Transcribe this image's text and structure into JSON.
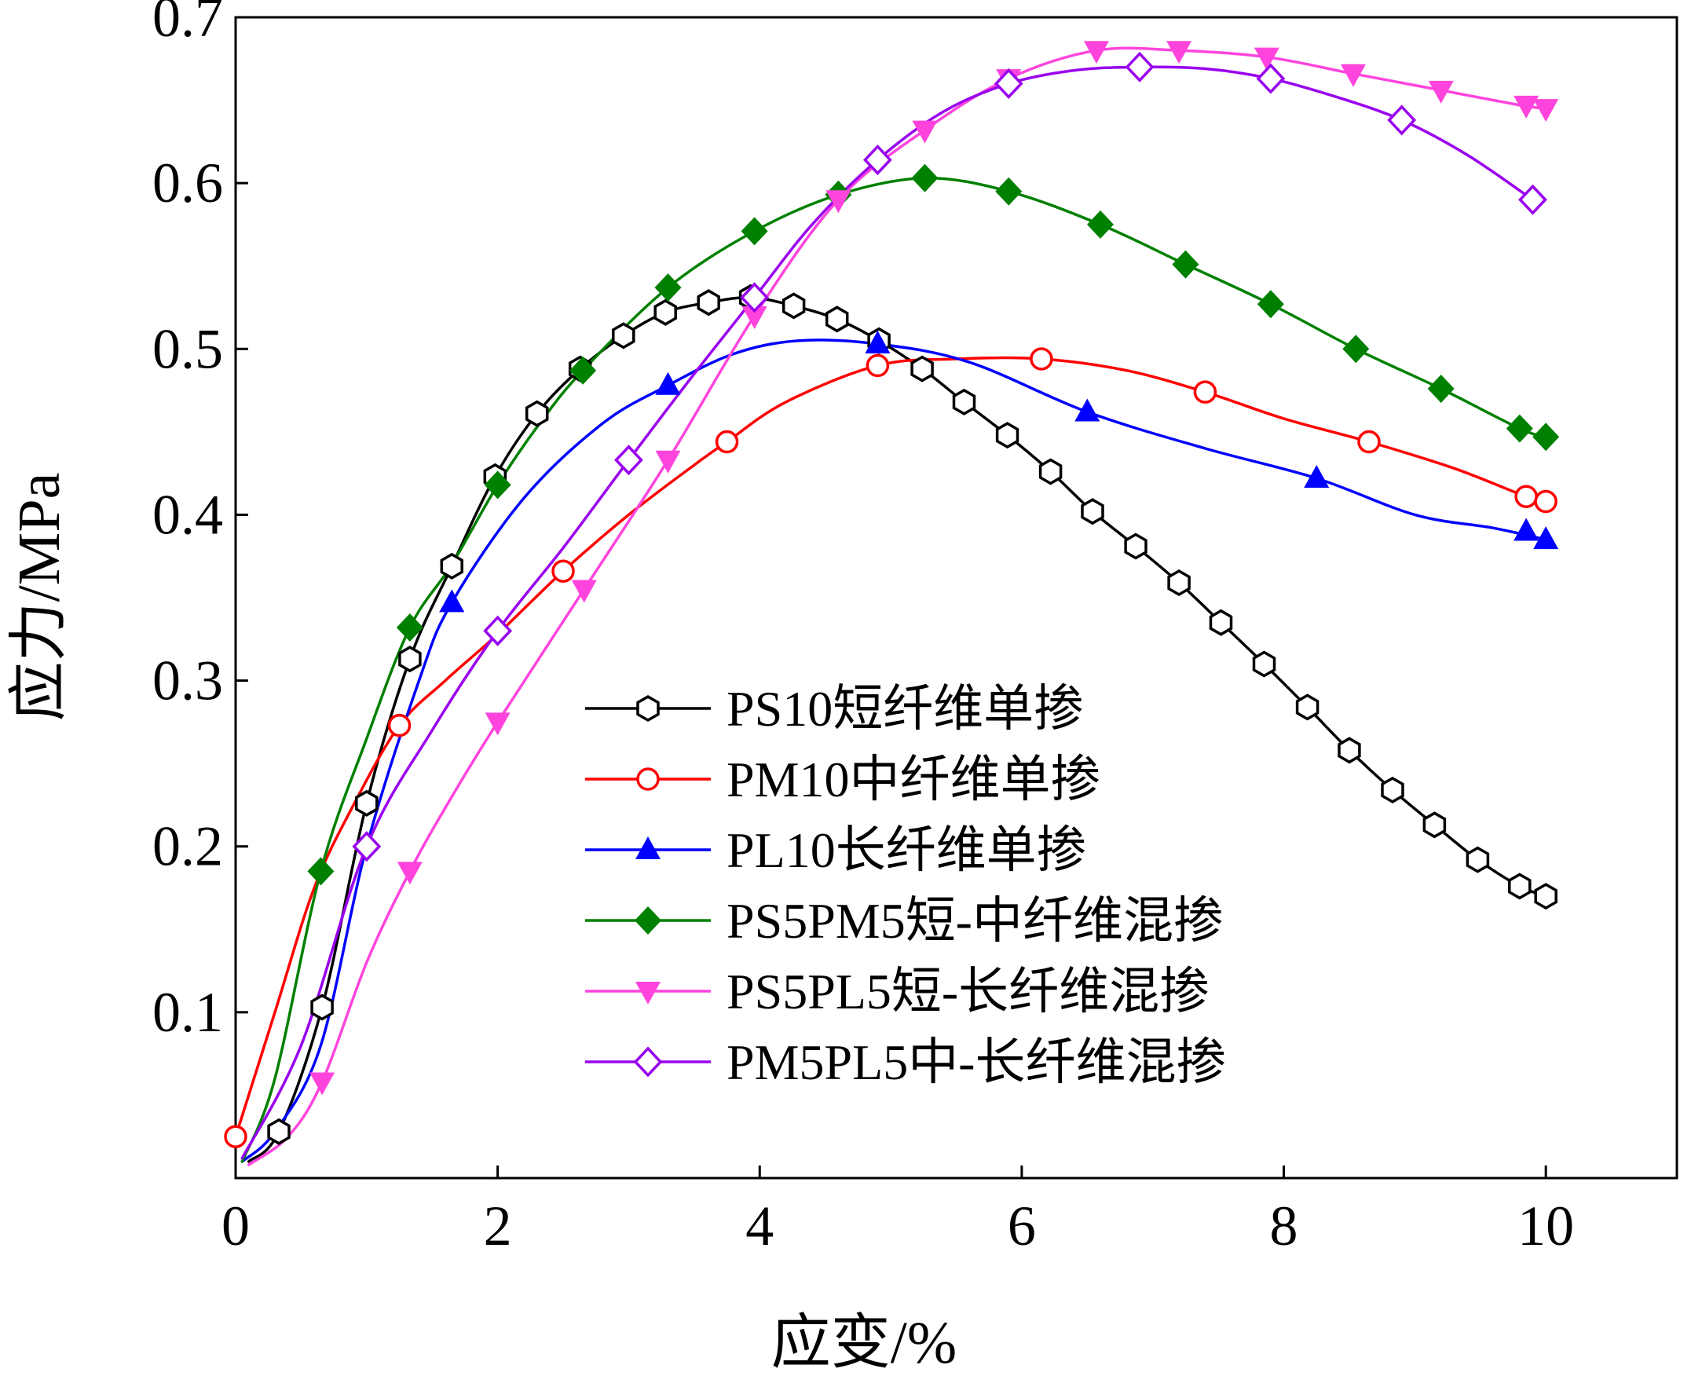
{
  "chart_data": {
    "type": "line",
    "title": "",
    "xlabel": "应变/%",
    "ylabel": "应力/MPa",
    "xlim": [
      0,
      11
    ],
    "ylim": [
      0,
      0.7
    ],
    "xticks": [
      0,
      2,
      4,
      6,
      8,
      10
    ],
    "xtick_labels": [
      "0",
      "2",
      "4",
      "6",
      "8",
      "10"
    ],
    "yticks": [
      0.1,
      0.2,
      0.3,
      0.4,
      0.5,
      0.6,
      0.7
    ],
    "ytick_labels": [
      "0.1",
      "0.2",
      "0.3",
      "0.4",
      "0.5",
      "0.6",
      "0.7"
    ],
    "grid": false,
    "legend_position": "lower-center",
    "series": [
      {
        "name": "PS10短纤维单掺",
        "color": "#000000",
        "marker": "hexagon-open",
        "line": [
          [
            0.1,
            0.01
          ],
          [
            0.33,
            0.028
          ],
          [
            0.66,
            0.103
          ],
          [
            1.0,
            0.226
          ],
          [
            1.33,
            0.313
          ],
          [
            1.65,
            0.369
          ],
          [
            1.98,
            0.423
          ],
          [
            2.3,
            0.461
          ],
          [
            2.63,
            0.488
          ],
          [
            2.96,
            0.508
          ],
          [
            3.28,
            0.522
          ],
          [
            3.61,
            0.528
          ],
          [
            3.93,
            0.531
          ],
          [
            4.26,
            0.526
          ],
          [
            4.59,
            0.518
          ],
          [
            4.91,
            0.505
          ],
          [
            5.24,
            0.488
          ],
          [
            5.56,
            0.468
          ],
          [
            5.89,
            0.448
          ],
          [
            6.22,
            0.426
          ],
          [
            6.54,
            0.402
          ],
          [
            6.87,
            0.381
          ],
          [
            7.2,
            0.359
          ],
          [
            7.52,
            0.335
          ],
          [
            7.85,
            0.31
          ],
          [
            8.18,
            0.284
          ],
          [
            8.5,
            0.258
          ],
          [
            8.83,
            0.234
          ],
          [
            9.15,
            0.213
          ],
          [
            9.48,
            0.192
          ],
          [
            9.8,
            0.176
          ],
          [
            10.0,
            0.17
          ]
        ],
        "points": [
          [
            0.33,
            0.028
          ],
          [
            0.66,
            0.103
          ],
          [
            1.0,
            0.226
          ],
          [
            1.33,
            0.313
          ],
          [
            1.65,
            0.369
          ],
          [
            1.98,
            0.423
          ],
          [
            2.3,
            0.461
          ],
          [
            2.63,
            0.488
          ],
          [
            2.96,
            0.508
          ],
          [
            3.28,
            0.522
          ],
          [
            3.61,
            0.528
          ],
          [
            3.93,
            0.531
          ],
          [
            4.26,
            0.526
          ],
          [
            4.59,
            0.518
          ],
          [
            4.91,
            0.505
          ],
          [
            5.24,
            0.488
          ],
          [
            5.56,
            0.468
          ],
          [
            5.89,
            0.448
          ],
          [
            6.22,
            0.426
          ],
          [
            6.54,
            0.402
          ],
          [
            6.87,
            0.381
          ],
          [
            7.2,
            0.359
          ],
          [
            7.52,
            0.335
          ],
          [
            7.85,
            0.31
          ],
          [
            8.18,
            0.284
          ],
          [
            8.5,
            0.258
          ],
          [
            8.83,
            0.234
          ],
          [
            9.15,
            0.213
          ],
          [
            9.48,
            0.192
          ],
          [
            9.8,
            0.176
          ],
          [
            10.0,
            0.17
          ]
        ]
      },
      {
        "name": "PM10中纤维单掺",
        "color": "#ff0000",
        "marker": "circle-open",
        "line": [
          [
            0.0,
            0.025
          ],
          [
            0.3,
            0.1
          ],
          [
            0.6,
            0.175
          ],
          [
            0.9,
            0.225
          ],
          [
            1.25,
            0.273
          ],
          [
            1.6,
            0.3
          ],
          [
            2.0,
            0.328
          ],
          [
            2.5,
            0.366
          ],
          [
            3.0,
            0.4
          ],
          [
            3.5,
            0.43
          ],
          [
            3.75,
            0.444
          ],
          [
            4.2,
            0.468
          ],
          [
            4.9,
            0.49
          ],
          [
            5.5,
            0.494
          ],
          [
            6.15,
            0.494
          ],
          [
            6.8,
            0.487
          ],
          [
            7.4,
            0.474
          ],
          [
            8.0,
            0.458
          ],
          [
            8.65,
            0.444
          ],
          [
            9.3,
            0.428
          ],
          [
            9.85,
            0.411
          ],
          [
            10.0,
            0.408
          ]
        ],
        "points": [
          [
            0.0,
            0.025
          ],
          [
            1.25,
            0.273
          ],
          [
            2.5,
            0.366
          ],
          [
            3.75,
            0.444
          ],
          [
            4.9,
            0.49
          ],
          [
            6.15,
            0.494
          ],
          [
            7.4,
            0.474
          ],
          [
            8.65,
            0.444
          ],
          [
            9.85,
            0.411
          ],
          [
            10.0,
            0.408
          ]
        ]
      },
      {
        "name": "PL10长纤维单掺",
        "color": "#0000ff",
        "marker": "triangle-up-filled",
        "line": [
          [
            0.05,
            0.01
          ],
          [
            0.3,
            0.028
          ],
          [
            0.65,
            0.08
          ],
          [
            1.0,
            0.2
          ],
          [
            1.4,
            0.3
          ],
          [
            1.65,
            0.347
          ],
          [
            2.2,
            0.41
          ],
          [
            2.8,
            0.455
          ],
          [
            3.3,
            0.478
          ],
          [
            3.8,
            0.497
          ],
          [
            4.3,
            0.505
          ],
          [
            4.9,
            0.503
          ],
          [
            5.6,
            0.492
          ],
          [
            6.5,
            0.462
          ],
          [
            7.4,
            0.44
          ],
          [
            8.25,
            0.422
          ],
          [
            9.0,
            0.4
          ],
          [
            9.6,
            0.392
          ],
          [
            10.0,
            0.385
          ]
        ],
        "points": [
          [
            1.65,
            0.347
          ],
          [
            3.3,
            0.478
          ],
          [
            4.9,
            0.503
          ],
          [
            6.5,
            0.462
          ],
          [
            8.25,
            0.422
          ],
          [
            9.85,
            0.39
          ],
          [
            10.0,
            0.385
          ]
        ]
      },
      {
        "name": "PS5PM5短-中纤维混掺",
        "color": "#008000",
        "marker": "diamond-filled",
        "line": [
          [
            0.05,
            0.01
          ],
          [
            0.3,
            0.06
          ],
          [
            0.65,
            0.185
          ],
          [
            1.0,
            0.265
          ],
          [
            1.33,
            0.332
          ],
          [
            1.65,
            0.37
          ],
          [
            2.0,
            0.418
          ],
          [
            2.32,
            0.455
          ],
          [
            2.65,
            0.487
          ],
          [
            3.3,
            0.537
          ],
          [
            3.96,
            0.571
          ],
          [
            4.6,
            0.593
          ],
          [
            5.26,
            0.603
          ],
          [
            5.9,
            0.595
          ],
          [
            6.6,
            0.575
          ],
          [
            7.25,
            0.551
          ],
          [
            7.9,
            0.527
          ],
          [
            8.55,
            0.5
          ],
          [
            9.2,
            0.476
          ],
          [
            9.8,
            0.452
          ],
          [
            10.0,
            0.447
          ]
        ],
        "points": [
          [
            0.65,
            0.185
          ],
          [
            1.33,
            0.332
          ],
          [
            2.0,
            0.418
          ],
          [
            2.65,
            0.487
          ],
          [
            3.3,
            0.537
          ],
          [
            3.96,
            0.571
          ],
          [
            4.6,
            0.593
          ],
          [
            5.26,
            0.603
          ],
          [
            5.9,
            0.595
          ],
          [
            6.6,
            0.575
          ],
          [
            7.25,
            0.551
          ],
          [
            7.9,
            0.527
          ],
          [
            8.55,
            0.5
          ],
          [
            9.2,
            0.476
          ],
          [
            9.8,
            0.452
          ],
          [
            10.0,
            0.447
          ]
        ]
      },
      {
        "name": "PS5PL5短-长纤维混掺",
        "color": "#ff44dd",
        "marker": "triangle-down-filled",
        "line": [
          [
            0.1,
            0.008
          ],
          [
            0.4,
            0.025
          ],
          [
            0.66,
            0.058
          ],
          [
            1.0,
            0.13
          ],
          [
            1.33,
            0.185
          ],
          [
            1.65,
            0.23
          ],
          [
            2.0,
            0.275
          ],
          [
            2.66,
            0.355
          ],
          [
            3.3,
            0.433
          ],
          [
            3.96,
            0.52
          ],
          [
            4.6,
            0.59
          ],
          [
            5.26,
            0.632
          ],
          [
            5.9,
            0.663
          ],
          [
            6.57,
            0.68
          ],
          [
            7.2,
            0.68
          ],
          [
            7.87,
            0.676
          ],
          [
            8.53,
            0.666
          ],
          [
            9.2,
            0.656
          ],
          [
            9.8,
            0.647
          ],
          [
            10.0,
            0.645
          ]
        ],
        "points": [
          [
            0.66,
            0.058
          ],
          [
            1.33,
            0.185
          ],
          [
            2.0,
            0.275
          ],
          [
            2.66,
            0.355
          ],
          [
            3.3,
            0.433
          ],
          [
            3.96,
            0.52
          ],
          [
            4.6,
            0.59
          ],
          [
            5.26,
            0.632
          ],
          [
            5.9,
            0.663
          ],
          [
            6.57,
            0.68
          ],
          [
            7.2,
            0.68
          ],
          [
            7.87,
            0.676
          ],
          [
            8.53,
            0.666
          ],
          [
            9.2,
            0.656
          ],
          [
            9.85,
            0.647
          ],
          [
            10.0,
            0.645
          ]
        ]
      },
      {
        "name": "PM5PL5中-长纤维混掺",
        "color": "#9900ee",
        "marker": "diamond-open",
        "line": [
          [
            0.05,
            0.012
          ],
          [
            0.5,
            0.08
          ],
          [
            1.0,
            0.2
          ],
          [
            1.5,
            0.27
          ],
          [
            2.0,
            0.33
          ],
          [
            2.5,
            0.38
          ],
          [
            3.0,
            0.433
          ],
          [
            3.5,
            0.485
          ],
          [
            3.96,
            0.531
          ],
          [
            4.4,
            0.575
          ],
          [
            4.9,
            0.614
          ],
          [
            5.4,
            0.643
          ],
          [
            5.9,
            0.66
          ],
          [
            6.4,
            0.668
          ],
          [
            6.9,
            0.67
          ],
          [
            7.4,
            0.669
          ],
          [
            7.9,
            0.663
          ],
          [
            8.4,
            0.652
          ],
          [
            8.9,
            0.638
          ],
          [
            9.4,
            0.617
          ],
          [
            9.9,
            0.59
          ]
        ],
        "points": [
          [
            1.0,
            0.2
          ],
          [
            2.0,
            0.33
          ],
          [
            3.0,
            0.433
          ],
          [
            3.96,
            0.531
          ],
          [
            4.9,
            0.614
          ],
          [
            5.9,
            0.66
          ],
          [
            6.9,
            0.67
          ],
          [
            7.9,
            0.663
          ],
          [
            8.9,
            0.638
          ],
          [
            9.9,
            0.59
          ]
        ]
      }
    ]
  }
}
